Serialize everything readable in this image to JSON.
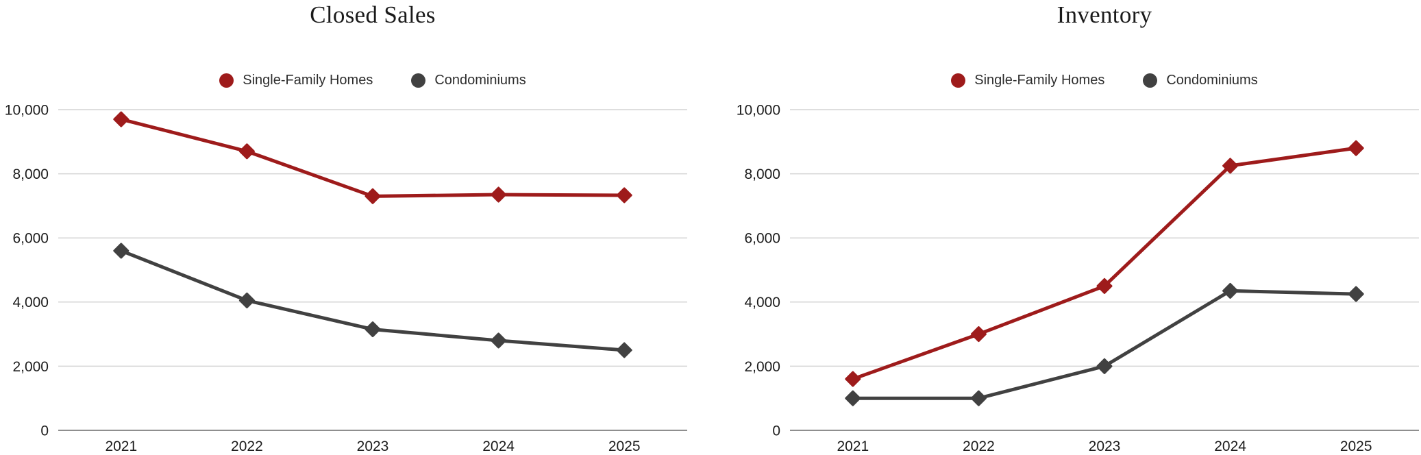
{
  "page_background": "#ffffff",
  "chart_data": [
    {
      "type": "line",
      "title": "Closed Sales",
      "categories": [
        "2021",
        "2022",
        "2023",
        "2024",
        "2025"
      ],
      "series": [
        {
          "name": "Single-Family Homes",
          "color": "#9e1b1b",
          "values": [
            9700,
            8700,
            7300,
            7350,
            7330
          ]
        },
        {
          "name": "Condominiums",
          "color": "#414141",
          "values": [
            5600,
            4050,
            3150,
            2800,
            2500
          ]
        }
      ],
      "xlabel": "",
      "ylabel": "",
      "ylim": [
        0,
        10000
      ],
      "yticks": [
        0,
        2000,
        4000,
        6000,
        8000,
        10000
      ],
      "ytick_labels": [
        "0",
        "2,000",
        "4,000",
        "6,000",
        "8,000",
        "10,000"
      ],
      "grid": true,
      "grid_color": "#d4d4d4",
      "axis_color": "#8f8f8f",
      "legend_position": "top",
      "marker": "diamond"
    },
    {
      "type": "line",
      "title": "Inventory",
      "categories": [
        "2021",
        "2022",
        "2023",
        "2024",
        "2025"
      ],
      "series": [
        {
          "name": "Single-Family Homes",
          "color": "#9e1b1b",
          "values": [
            1600,
            3000,
            4500,
            8250,
            8800
          ]
        },
        {
          "name": "Condominiums",
          "color": "#414141",
          "values": [
            1000,
            1000,
            2000,
            4350,
            4250
          ]
        }
      ],
      "xlabel": "",
      "ylabel": "",
      "ylim": [
        0,
        10000
      ],
      "yticks": [
        0,
        2000,
        4000,
        6000,
        8000,
        10000
      ],
      "ytick_labels": [
        "0",
        "2,000",
        "4,000",
        "6,000",
        "8,000",
        "10,000"
      ],
      "grid": true,
      "grid_color": "#d4d4d4",
      "axis_color": "#8f8f8f",
      "legend_position": "top",
      "marker": "diamond"
    }
  ]
}
